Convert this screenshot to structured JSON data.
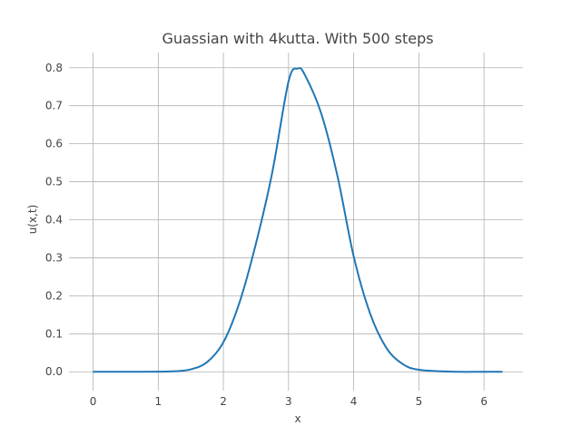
{
  "chart_data": {
    "type": "line",
    "title": "Guassian with 4kutta. With 500 steps",
    "xlabel": "x",
    "ylabel": "u(x,t)",
    "xlim": [
      -0.314,
      6.597
    ],
    "ylim": [
      -0.04,
      0.84
    ],
    "xticks": [
      0,
      1,
      2,
      3,
      4,
      5,
      6
    ],
    "yticks": [
      0.0,
      0.1,
      0.2,
      0.3,
      0.4,
      0.5,
      0.6,
      0.7,
      0.8
    ],
    "ytick_labels": [
      "0.0",
      "0.1",
      "0.2",
      "0.3",
      "0.4",
      "0.5",
      "0.6",
      "0.7",
      "0.8"
    ],
    "grid": true,
    "series": [
      {
        "color": "#1f77b4",
        "x": [
          0.0,
          0.5,
          1.0,
          1.25,
          1.5,
          1.75,
          2.0,
          2.25,
          2.5,
          2.75,
          3.0,
          3.1416,
          3.25,
          3.5,
          3.75,
          4.0,
          4.25,
          4.5,
          4.75,
          5.0,
          5.5,
          6.0,
          6.2832
        ],
        "y": [
          0.0,
          0.0,
          0.0002,
          0.0013,
          0.0064,
          0.0254,
          0.0777,
          0.1838,
          0.3376,
          0.5245,
          0.7642,
          0.7979,
          0.7815,
          0.6806,
          0.5158,
          0.3036,
          0.1543,
          0.0633,
          0.0206,
          0.0052,
          0.0002,
          0.0,
          0.0
        ]
      }
    ]
  }
}
